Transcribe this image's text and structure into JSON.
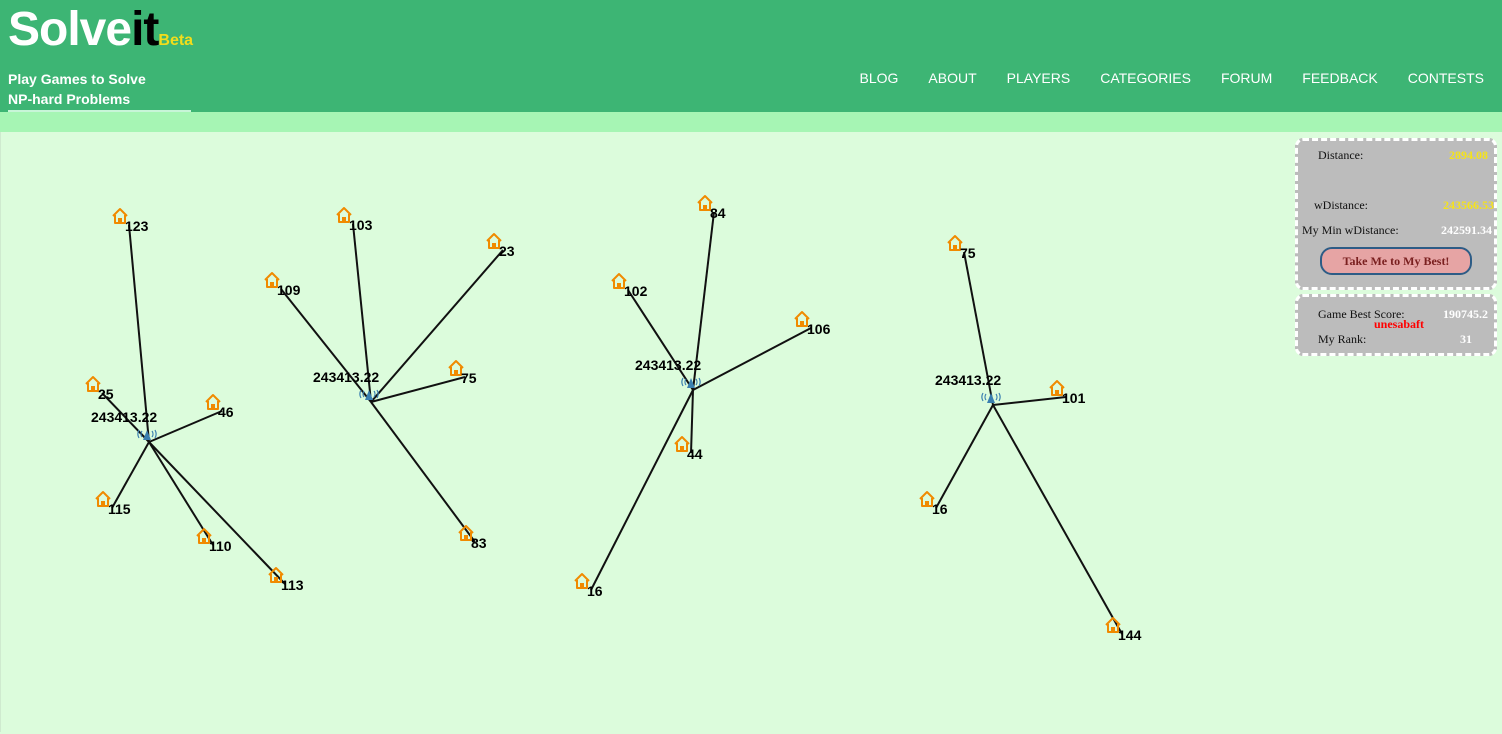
{
  "logo": {
    "solve": "Solve",
    "it": "it",
    "beta": "Beta"
  },
  "tagline": {
    "line1": "Play Games to Solve",
    "line2": "NP-hard Problems"
  },
  "nav": [
    "BLOG",
    "ABOUT",
    "PLAYERS",
    "CATEGORIES",
    "FORUM",
    "FEEDBACK",
    "CONTESTS"
  ],
  "stats": {
    "distance_label": "Distance:",
    "distance_value": "2894.08",
    "wdistance_label": "wDistance:",
    "wdistance_value": "243566.53",
    "min_wdistance_label": "My Min wDistance:",
    "min_wdistance_value": "242591.34",
    "best_button": "Take Me to My Best!",
    "game_best_label": "Game Best Score:",
    "game_best_value": "190745.2",
    "game_best_user": "unesabaft",
    "rank_label": "My Rank:",
    "rank_value": "31"
  },
  "colors": {
    "header": "#3db574",
    "board": "#dcfcdc",
    "house": "#f08a00",
    "tower": "#3a7fb0",
    "yellow_value": "#f5e31a"
  },
  "clusters": [
    {
      "hub_label": "243413.22",
      "houses": [
        "123",
        "25",
        "46",
        "115",
        "110",
        "113"
      ]
    },
    {
      "hub_label": "243413.22",
      "houses": [
        "103",
        "109",
        "23",
        "75",
        "83"
      ]
    },
    {
      "hub_label": "243413.22",
      "houses": [
        "84",
        "102",
        "106",
        "44",
        "16"
      ]
    },
    {
      "hub_label": "243413.22",
      "houses": [
        "75",
        "101",
        "16",
        "144"
      ]
    }
  ]
}
